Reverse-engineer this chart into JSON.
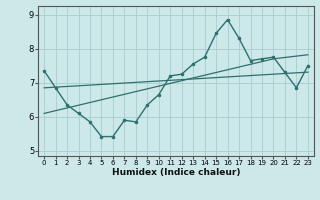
{
  "title": "",
  "xlabel": "Humidex (Indice chaleur)",
  "bg_color": "#cce8e8",
  "grid_color": "#aacccc",
  "line_color": "#2e7070",
  "x_data": [
    0,
    1,
    2,
    3,
    4,
    5,
    6,
    7,
    8,
    9,
    10,
    11,
    12,
    13,
    14,
    15,
    16,
    17,
    18,
    19,
    20,
    21,
    22,
    23
  ],
  "y_main": [
    7.35,
    6.85,
    6.35,
    6.1,
    5.85,
    5.42,
    5.42,
    5.9,
    5.85,
    6.35,
    6.65,
    7.2,
    7.25,
    7.55,
    7.75,
    8.45,
    8.85,
    8.3,
    7.65,
    7.7,
    7.75,
    7.3,
    6.85,
    7.5
  ],
  "y_trend1": [
    6.85,
    6.87,
    6.89,
    6.91,
    6.93,
    6.95,
    6.97,
    6.99,
    7.01,
    7.03,
    7.05,
    7.07,
    7.09,
    7.11,
    7.13,
    7.15,
    7.17,
    7.19,
    7.21,
    7.23,
    7.25,
    7.27,
    7.29,
    7.31
  ],
  "y_trend2": [
    6.1,
    6.18,
    6.26,
    6.34,
    6.42,
    6.5,
    6.58,
    6.66,
    6.74,
    6.82,
    6.9,
    6.98,
    7.06,
    7.14,
    7.22,
    7.3,
    7.38,
    7.46,
    7.54,
    7.62,
    7.7,
    7.74,
    7.78,
    7.82
  ],
  "xlim": [
    -0.5,
    23.5
  ],
  "ylim": [
    4.85,
    9.25
  ],
  "yticks": [
    5,
    6,
    7,
    8,
    9
  ],
  "xticks": [
    0,
    1,
    2,
    3,
    4,
    5,
    6,
    7,
    8,
    9,
    10,
    11,
    12,
    13,
    14,
    15,
    16,
    17,
    18,
    19,
    20,
    21,
    22,
    23
  ]
}
